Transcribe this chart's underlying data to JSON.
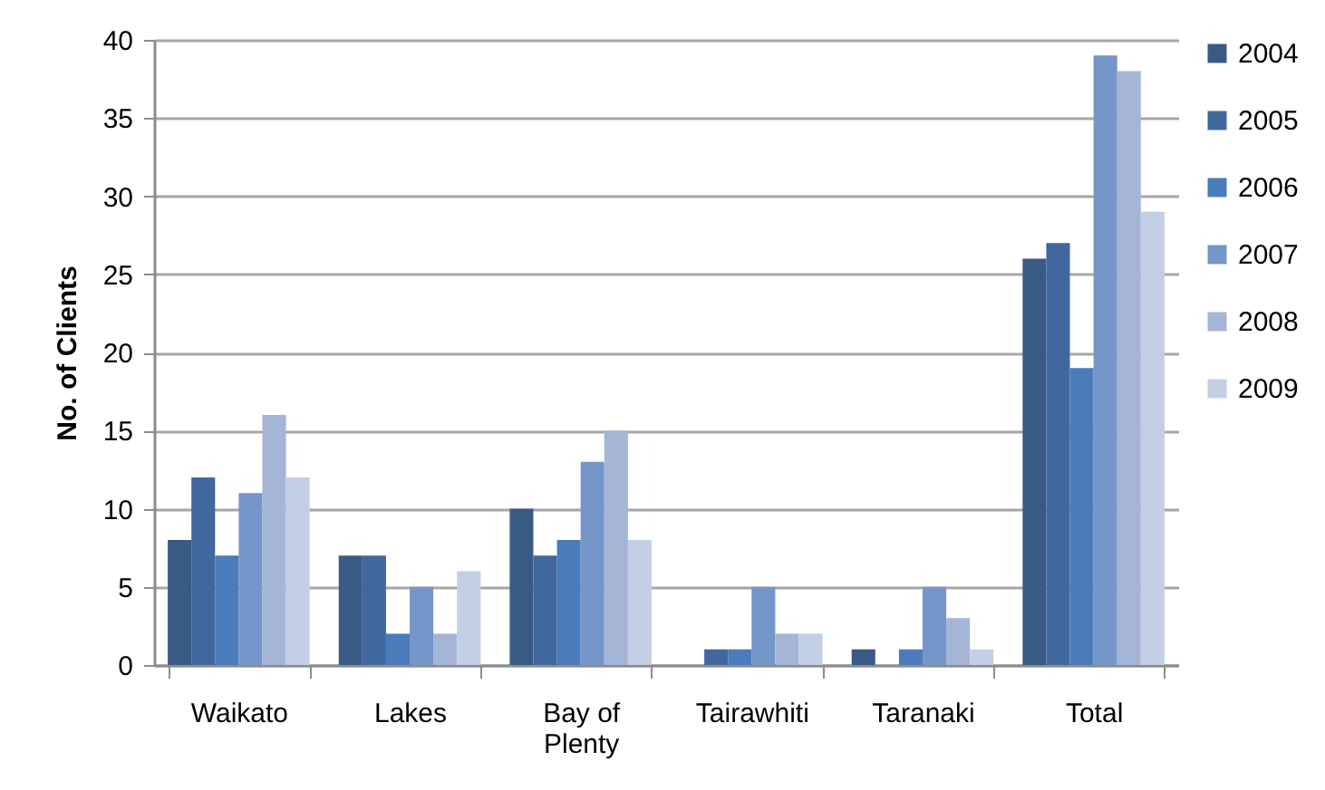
{
  "chart_data": {
    "type": "bar",
    "ylabel": "No. of Clients",
    "categories": [
      "Waikato",
      "Lakes",
      "Bay of Plenty",
      "Tairawhiti",
      "Taranaki",
      "Total"
    ],
    "series": [
      {
        "name": "2004",
        "color": "#3a5a86",
        "values": [
          8,
          7,
          10,
          0,
          1,
          26
        ]
      },
      {
        "name": "2005",
        "color": "#41679f",
        "values": [
          12,
          7,
          7,
          1,
          0,
          27
        ]
      },
      {
        "name": "2006",
        "color": "#4a7bbb",
        "values": [
          7,
          2,
          8,
          1,
          1,
          19
        ]
      },
      {
        "name": "2007",
        "color": "#7496c8",
        "values": [
          11,
          5,
          13,
          5,
          5,
          39
        ]
      },
      {
        "name": "2008",
        "color": "#a4b5d6",
        "values": [
          16,
          2,
          15,
          2,
          3,
          38
        ]
      },
      {
        "name": "2009",
        "color": "#c3cfe4",
        "values": [
          12,
          6,
          8,
          2,
          1,
          29
        ]
      }
    ],
    "ylim": [
      0,
      40
    ],
    "yticks": [
      0,
      5,
      10,
      15,
      20,
      25,
      30,
      35,
      40
    ],
    "grid": "y",
    "legend": "right"
  }
}
